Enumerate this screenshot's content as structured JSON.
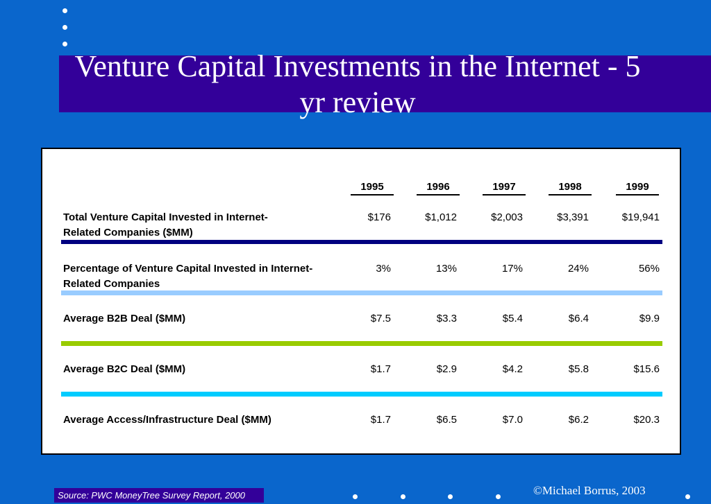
{
  "title": "Venture Capital Investments in the Internet - 5 yr review",
  "table": {
    "years": [
      "1995",
      "1996",
      "1997",
      "1998",
      "1999"
    ],
    "rows": [
      {
        "label": "Total Venture Capital Invested in Internet-Related Companies ($MM)",
        "values": [
          "$176",
          "$1,012",
          "$2,003",
          "$3,391",
          "$19,941"
        ]
      },
      {
        "label": "Percentage of Venture Capital Invested in Internet-Related Companies",
        "values": [
          "3%",
          "13%",
          "17%",
          "24%",
          "56%"
        ]
      },
      {
        "label": "Average B2B Deal ($MM)",
        "values": [
          "$7.5",
          "$3.3",
          "$5.4",
          "$6.4",
          "$9.9"
        ]
      },
      {
        "label": "Average B2C Deal ($MM)",
        "values": [
          "$1.7",
          "$2.9",
          "$4.2",
          "$5.8",
          "$15.6"
        ]
      },
      {
        "label": "Average Access/Infrastructure Deal ($MM)",
        "values": [
          "$1.7",
          "$6.5",
          "$7.0",
          "$6.2",
          "$20.3"
        ]
      }
    ],
    "separator_colors": [
      "#000080",
      "#99ccff",
      "#99cc00",
      "#00ccff"
    ]
  },
  "source": "Source: PWC MoneyTree Survey Report, 2000",
  "copyright": "©Michael Borrus, 2003",
  "colors": {
    "background": "#0a66cc",
    "title_band": "#330099",
    "panel": "#ffffff"
  }
}
